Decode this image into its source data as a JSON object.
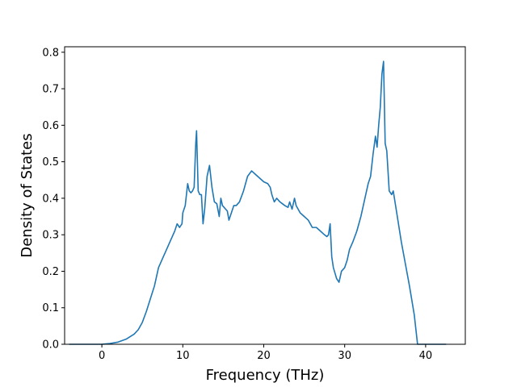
{
  "chart_data": {
    "type": "line",
    "title": "",
    "xlabel": "Frequency (THz)",
    "ylabel": "Density of States",
    "xlim": [
      -4.6,
      44.9
    ],
    "ylim": [
      0.0,
      0.815
    ],
    "xticks": [
      0,
      10,
      20,
      30,
      40
    ],
    "xtick_labels": [
      "0",
      "10",
      "20",
      "30",
      "40"
    ],
    "yticks": [
      0.0,
      0.1,
      0.2,
      0.3,
      0.4,
      0.5,
      0.6,
      0.7,
      0.8
    ],
    "ytick_labels": [
      "0.0",
      "0.1",
      "0.2",
      "0.3",
      "0.4",
      "0.5",
      "0.6",
      "0.7",
      "0.8"
    ],
    "grid": false,
    "legend": "none",
    "series": [
      {
        "color": "#1f77b4",
        "x": [
          -4.0,
          -2.0,
          0.0,
          1.0,
          2.0,
          3.0,
          4.0,
          4.5,
          5.0,
          5.5,
          6.0,
          6.5,
          6.8,
          7.0,
          7.5,
          8.0,
          8.5,
          9.0,
          9.3,
          9.6,
          9.9,
          10.0,
          10.3,
          10.6,
          10.8,
          11.0,
          11.2,
          11.4,
          11.6,
          11.7,
          11.9,
          12.1,
          12.3,
          12.5,
          12.7,
          13.0,
          13.3,
          13.6,
          13.9,
          14.2,
          14.5,
          14.7,
          14.9,
          15.1,
          15.3,
          15.5,
          15.7,
          16.0,
          16.3,
          16.6,
          17.0,
          17.5,
          18.0,
          18.5,
          19.0,
          19.5,
          20.0,
          20.5,
          20.8,
          21.0,
          21.3,
          21.6,
          22.0,
          22.3,
          22.6,
          23.0,
          23.2,
          23.5,
          23.8,
          24.0,
          24.5,
          25.0,
          25.5,
          26.0,
          26.5,
          27.0,
          27.5,
          27.8,
          28.0,
          28.2,
          28.4,
          28.6,
          29.0,
          29.3,
          29.6,
          30.0,
          30.3,
          30.6,
          31.0,
          31.5,
          32.0,
          32.5,
          32.9,
          33.2,
          33.5,
          33.8,
          34.0,
          34.2,
          34.4,
          34.6,
          34.8,
          35.0,
          35.2,
          35.5,
          35.8,
          36.0,
          36.5,
          37.0,
          37.5,
          38.0,
          38.3,
          38.6,
          39.0,
          40.0,
          41.0,
          42.5
        ],
        "y": [
          0.0,
          0.0,
          0.0,
          0.002,
          0.006,
          0.014,
          0.028,
          0.04,
          0.06,
          0.09,
          0.125,
          0.16,
          0.19,
          0.21,
          0.235,
          0.26,
          0.285,
          0.31,
          0.33,
          0.32,
          0.33,
          0.36,
          0.38,
          0.44,
          0.42,
          0.415,
          0.42,
          0.43,
          0.55,
          0.585,
          0.42,
          0.41,
          0.41,
          0.33,
          0.37,
          0.46,
          0.49,
          0.43,
          0.39,
          0.385,
          0.35,
          0.4,
          0.38,
          0.375,
          0.37,
          0.365,
          0.34,
          0.36,
          0.38,
          0.38,
          0.39,
          0.42,
          0.46,
          0.475,
          0.465,
          0.455,
          0.445,
          0.44,
          0.43,
          0.41,
          0.39,
          0.4,
          0.39,
          0.385,
          0.38,
          0.375,
          0.39,
          0.37,
          0.4,
          0.38,
          0.36,
          0.35,
          0.34,
          0.32,
          0.32,
          0.31,
          0.3,
          0.295,
          0.3,
          0.33,
          0.24,
          0.21,
          0.18,
          0.17,
          0.2,
          0.21,
          0.23,
          0.26,
          0.28,
          0.31,
          0.35,
          0.4,
          0.44,
          0.46,
          0.52,
          0.57,
          0.54,
          0.6,
          0.65,
          0.74,
          0.775,
          0.55,
          0.53,
          0.42,
          0.41,
          0.42,
          0.35,
          0.28,
          0.22,
          0.16,
          0.12,
          0.08,
          0.0,
          0.0,
          0.0,
          0.0
        ]
      }
    ]
  }
}
